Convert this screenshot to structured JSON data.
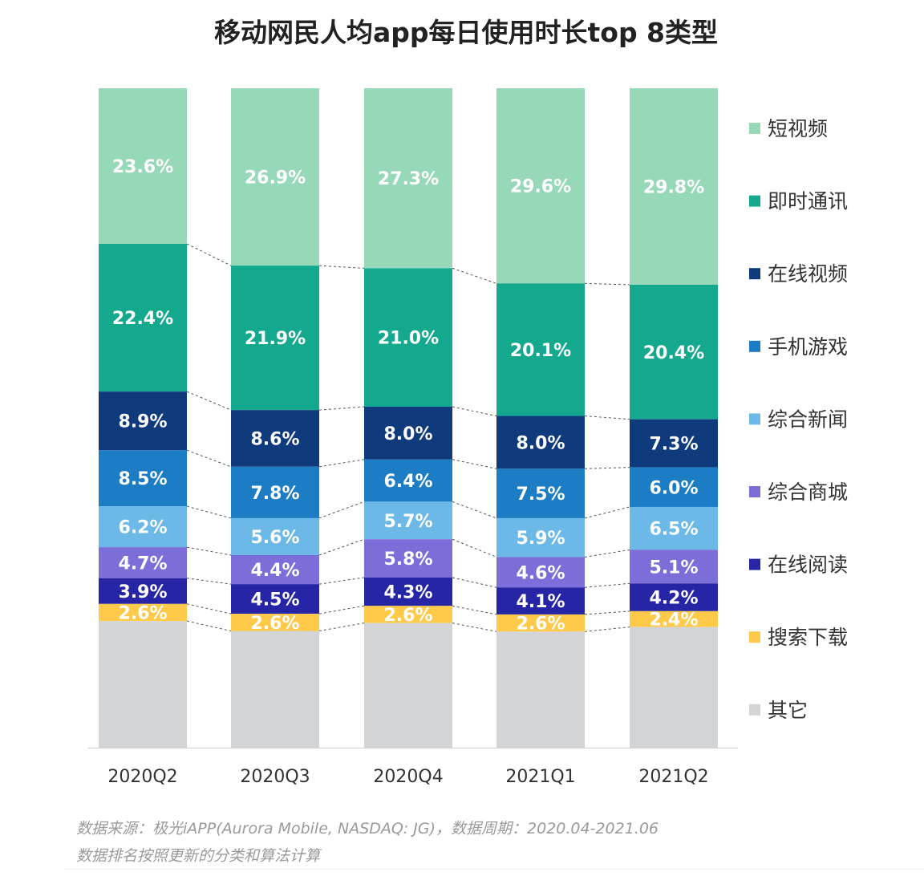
{
  "chart_data": {
    "type": "bar",
    "stacked": "percent",
    "title": "移动网民人均app每日使用时长top 8类型",
    "categories": [
      "2020Q2",
      "2020Q3",
      "2020Q4",
      "2021Q1",
      "2021Q2"
    ],
    "series": [
      {
        "name": "短视频",
        "color": "#97d8b9",
        "values": [
          23.6,
          26.9,
          27.3,
          29.6,
          29.8
        ]
      },
      {
        "name": "即时通讯",
        "color": "#14a98e",
        "values": [
          22.4,
          21.9,
          21.0,
          20.1,
          20.4
        ]
      },
      {
        "name": "在线视频",
        "color": "#0f3b7c",
        "values": [
          8.9,
          8.6,
          8.0,
          8.0,
          7.3
        ]
      },
      {
        "name": "手机游戏",
        "color": "#1c7cc4",
        "values": [
          8.5,
          7.8,
          6.4,
          7.5,
          6.0
        ]
      },
      {
        "name": "综合新闻",
        "color": "#6cb9e8",
        "values": [
          6.2,
          5.6,
          5.7,
          5.9,
          6.5
        ]
      },
      {
        "name": "综合商城",
        "color": "#7b6ed8",
        "values": [
          4.7,
          4.4,
          5.8,
          4.6,
          5.1
        ]
      },
      {
        "name": "在线阅读",
        "color": "#2525a6",
        "values": [
          3.9,
          4.5,
          4.3,
          4.1,
          4.2
        ]
      },
      {
        "name": "搜索下载",
        "color": "#ffc94a",
        "values": [
          2.6,
          2.6,
          2.6,
          2.6,
          2.4
        ]
      },
      {
        "name": "其它",
        "color": "#d3d4d6",
        "values": [
          19.2,
          17.7,
          18.9,
          17.6,
          18.3
        ],
        "labeled": false
      }
    ],
    "ylim": [
      0,
      100
    ],
    "grid": false,
    "legend": "right",
    "connector_lines": "dashed"
  },
  "footer": {
    "source": "数据来源：极光iAPP(Aurora Mobile, NASDAQ: JG)，数据周期：2020.04-2021.06",
    "note": "数据排名按照更新的分类和算法计算"
  }
}
